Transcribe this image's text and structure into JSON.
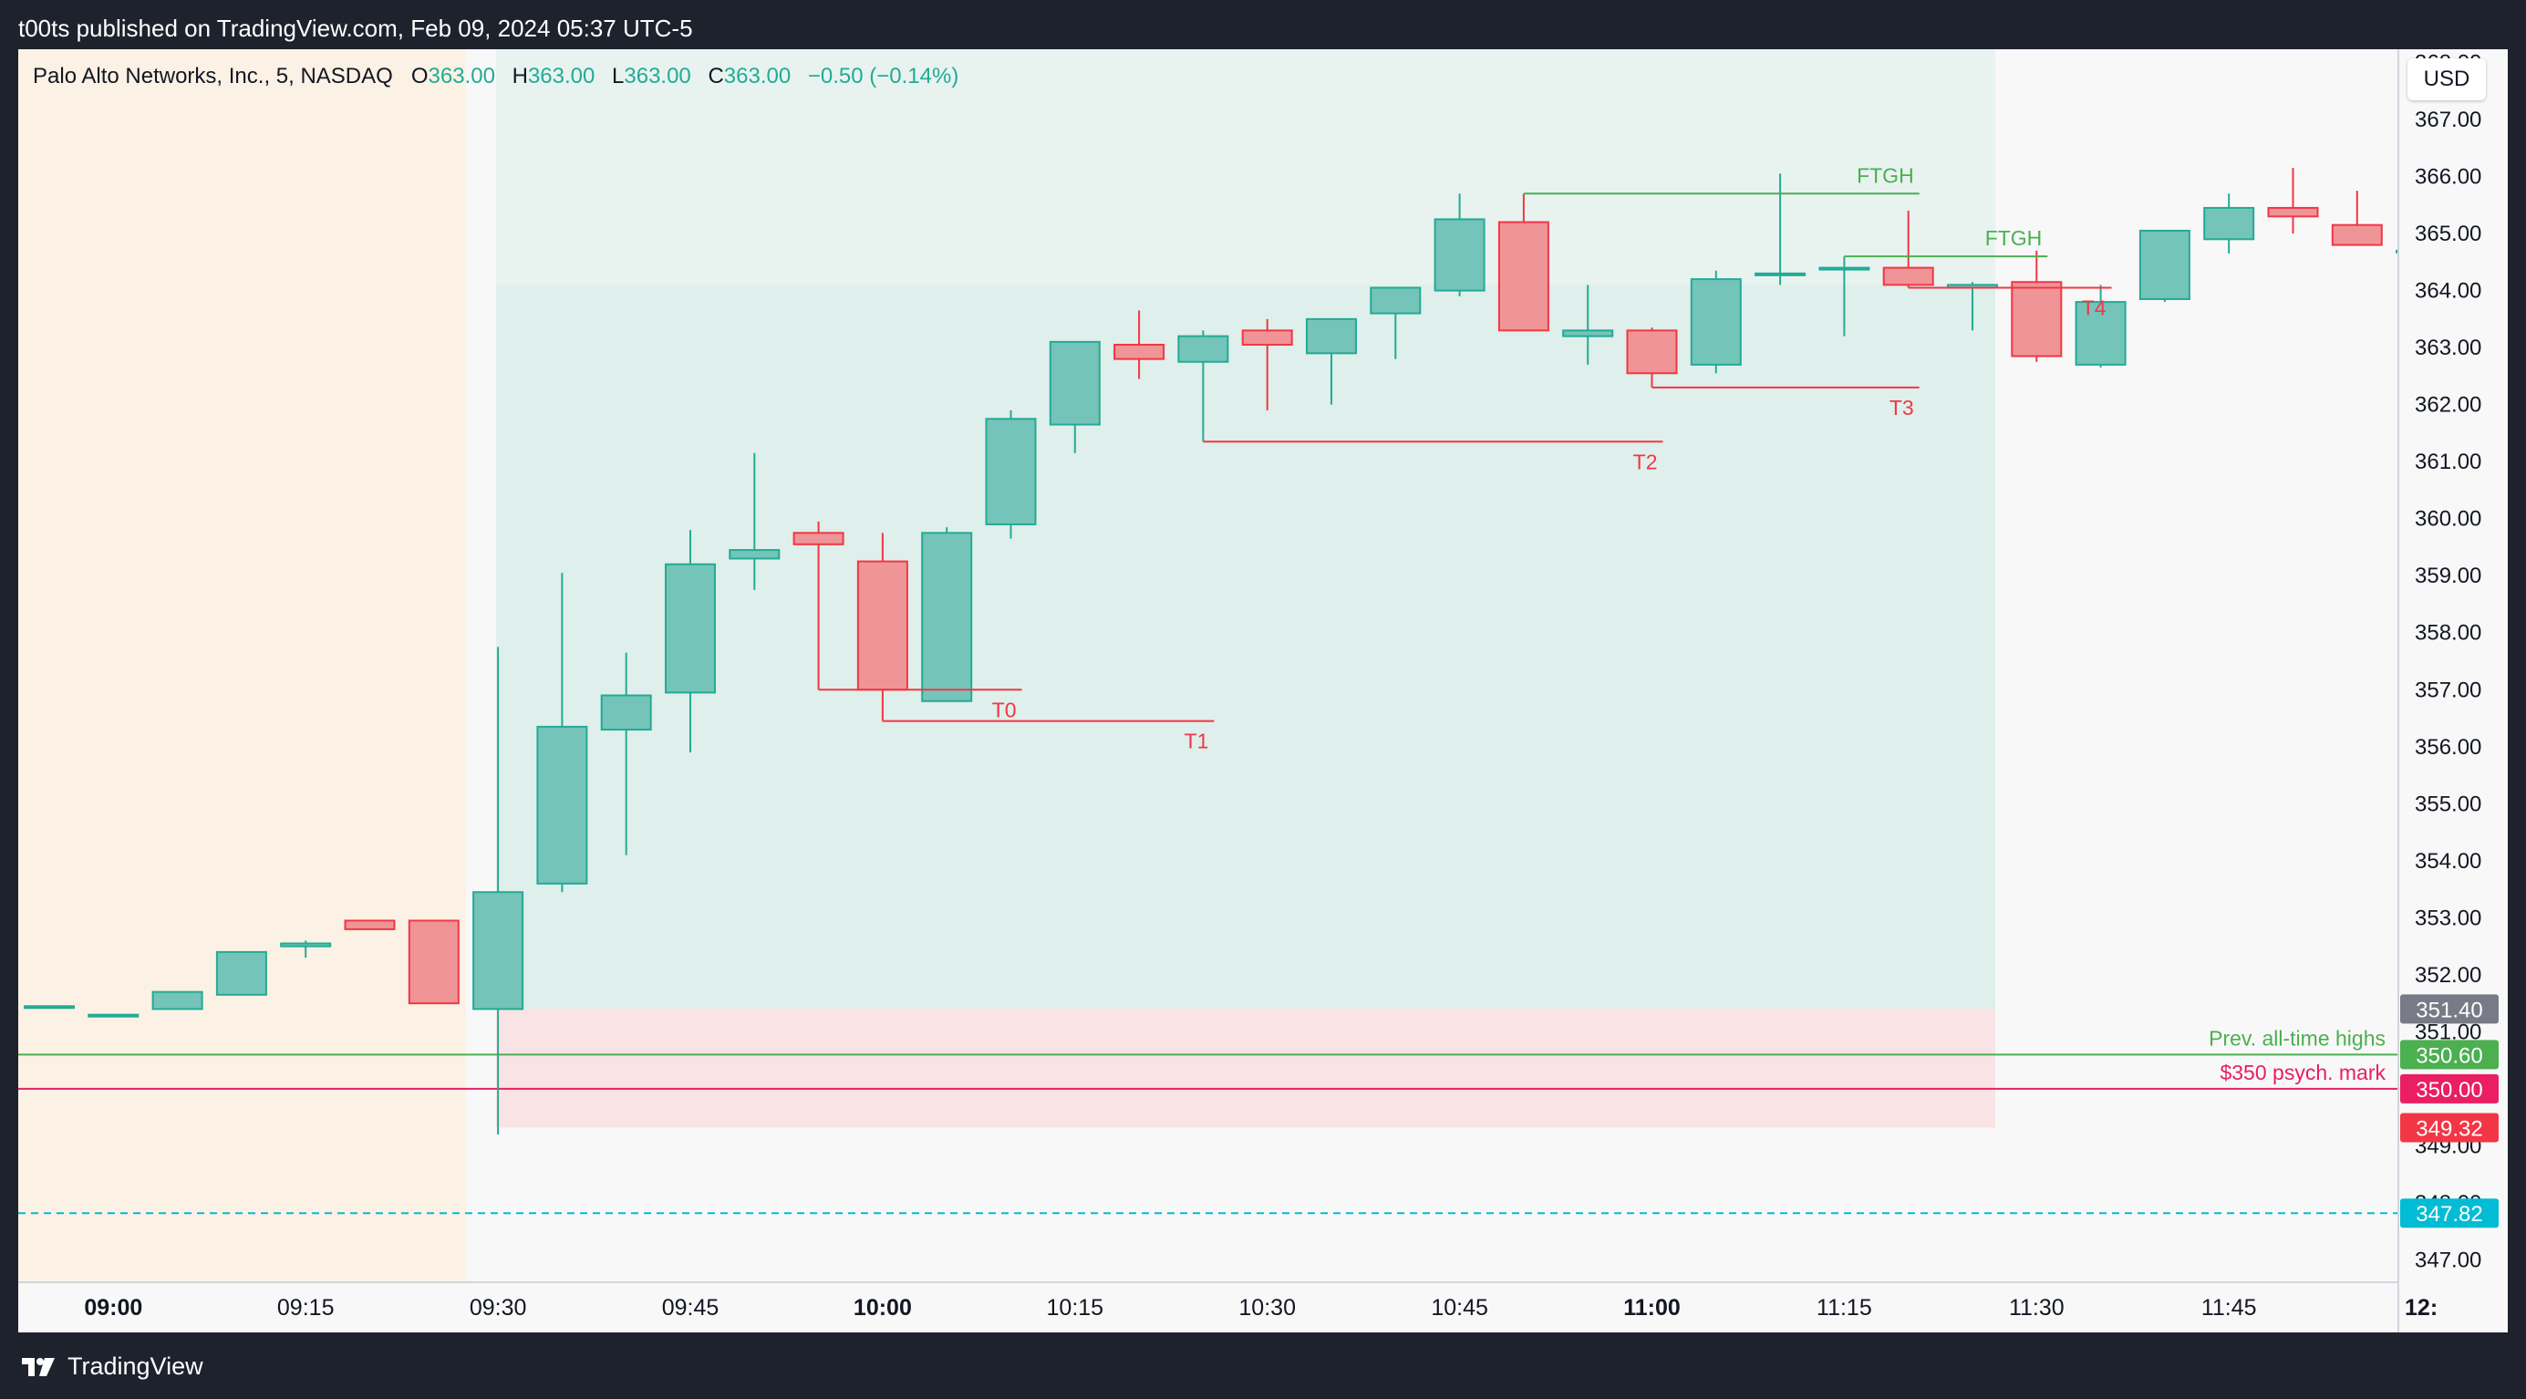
{
  "header": {
    "publish_text": "t00ts published on TradingView.com, Feb 09, 2024 05:37 UTC-5"
  },
  "legend": {
    "symbol": "Palo Alto Networks, Inc., 5, NASDAQ",
    "o_label": "O",
    "o_value": "363.00",
    "h_label": "H",
    "h_value": "363.00",
    "l_label": "L",
    "l_value": "363.00",
    "c_label": "C",
    "c_value": "363.00",
    "change": "−0.50 (−0.14%)"
  },
  "currency": "USD",
  "footer": {
    "brand": "TradingView"
  },
  "colors": {
    "up": "#22ab94",
    "down": "#f23645",
    "green_line": "#4caf50",
    "red_line": "#e91e63",
    "dashed": "#00bcd4"
  },
  "chart_data": {
    "type": "candlestick",
    "timeframe": "5",
    "y_range": [
      346.8,
      368.2
    ],
    "y_ticks": [
      "347.00",
      "348.00",
      "349.00",
      "350.00",
      "351.00",
      "352.00",
      "353.00",
      "354.00",
      "355.00",
      "356.00",
      "357.00",
      "358.00",
      "359.00",
      "360.00",
      "361.00",
      "362.00",
      "363.00",
      "364.00",
      "365.00",
      "366.00",
      "367.00",
      "368.00"
    ],
    "x_ticks": [
      {
        "label": "09:00",
        "i": 1,
        "bold": true
      },
      {
        "label": "09:15",
        "i": 4,
        "bold": false
      },
      {
        "label": "09:30",
        "i": 7,
        "bold": false
      },
      {
        "label": "09:45",
        "i": 10,
        "bold": false
      },
      {
        "label": "10:00",
        "i": 13,
        "bold": true
      },
      {
        "label": "10:15",
        "i": 16,
        "bold": false
      },
      {
        "label": "10:30",
        "i": 19,
        "bold": false
      },
      {
        "label": "10:45",
        "i": 22,
        "bold": false
      },
      {
        "label": "11:00",
        "i": 25,
        "bold": true
      },
      {
        "label": "11:15",
        "i": 28,
        "bold": false
      },
      {
        "label": "11:30",
        "i": 31,
        "bold": false
      },
      {
        "label": "11:45",
        "i": 34,
        "bold": false
      },
      {
        "label": "12:",
        "i": 37,
        "bold": true
      }
    ],
    "candles": [
      {
        "t": "08:55",
        "o": 351.45,
        "h": 351.45,
        "l": 351.45,
        "c": 351.45
      },
      {
        "t": "09:00",
        "o": 351.3,
        "h": 351.3,
        "l": 351.3,
        "c": 351.3
      },
      {
        "t": "09:05",
        "o": 351.4,
        "h": 351.7,
        "l": 351.4,
        "c": 351.7
      },
      {
        "t": "09:10",
        "o": 351.65,
        "h": 352.4,
        "l": 351.65,
        "c": 352.4
      },
      {
        "t": "09:15",
        "o": 352.5,
        "h": 352.6,
        "l": 352.3,
        "c": 352.55
      },
      {
        "t": "09:20",
        "o": 352.95,
        "h": 352.95,
        "l": 352.8,
        "c": 352.8
      },
      {
        "t": "09:25",
        "o": 352.95,
        "h": 352.95,
        "l": 351.5,
        "c": 351.5
      },
      {
        "t": "09:30",
        "o": 351.4,
        "h": 357.75,
        "l": 349.2,
        "c": 353.45
      },
      {
        "t": "09:35",
        "o": 353.6,
        "h": 359.05,
        "l": 353.45,
        "c": 356.35
      },
      {
        "t": "09:40",
        "o": 356.3,
        "h": 357.65,
        "l": 354.1,
        "c": 356.9
      },
      {
        "t": "09:45",
        "o": 356.95,
        "h": 359.8,
        "l": 355.9,
        "c": 359.2
      },
      {
        "t": "09:50",
        "o": 359.3,
        "h": 361.15,
        "l": 358.75,
        "c": 359.45
      },
      {
        "t": "09:55",
        "o": 359.75,
        "h": 359.95,
        "l": 357.0,
        "c": 359.55
      },
      {
        "t": "10:00",
        "o": 359.25,
        "h": 359.75,
        "l": 356.45,
        "c": 357.0
      },
      {
        "t": "10:05",
        "o": 356.8,
        "h": 359.85,
        "l": 356.8,
        "c": 359.75
      },
      {
        "t": "10:10",
        "o": 359.9,
        "h": 361.9,
        "l": 359.65,
        "c": 361.75
      },
      {
        "t": "10:15",
        "o": 361.65,
        "h": 363.1,
        "l": 361.15,
        "c": 363.1
      },
      {
        "t": "10:20",
        "o": 363.05,
        "h": 363.65,
        "l": 362.45,
        "c": 362.8
      },
      {
        "t": "10:25",
        "o": 362.75,
        "h": 363.3,
        "l": 361.35,
        "c": 363.2
      },
      {
        "t": "10:30",
        "o": 363.3,
        "h": 363.5,
        "l": 361.9,
        "c": 363.05
      },
      {
        "t": "10:35",
        "o": 362.9,
        "h": 363.5,
        "l": 362.0,
        "c": 363.5
      },
      {
        "t": "10:40",
        "o": 363.6,
        "h": 364.05,
        "l": 362.8,
        "c": 364.05
      },
      {
        "t": "10:45",
        "o": 364.0,
        "h": 365.7,
        "l": 363.9,
        "c": 365.25
      },
      {
        "t": "10:50",
        "o": 365.2,
        "h": 365.7,
        "l": 363.3,
        "c": 363.3
      },
      {
        "t": "10:55",
        "o": 363.2,
        "h": 364.1,
        "l": 362.7,
        "c": 363.3
      },
      {
        "t": "11:00",
        "o": 363.3,
        "h": 363.35,
        "l": 362.3,
        "c": 362.55
      },
      {
        "t": "11:05",
        "o": 362.7,
        "h": 364.35,
        "l": 362.55,
        "c": 364.2
      },
      {
        "t": "11:10",
        "o": 364.3,
        "h": 366.05,
        "l": 364.1,
        "c": 364.3
      },
      {
        "t": "11:15",
        "o": 364.4,
        "h": 364.6,
        "l": 363.2,
        "c": 364.4
      },
      {
        "t": "11:20",
        "o": 364.4,
        "h": 365.4,
        "l": 364.05,
        "c": 364.1
      },
      {
        "t": "11:25",
        "o": 364.05,
        "h": 364.15,
        "l": 363.3,
        "c": 364.1
      },
      {
        "t": "11:30",
        "o": 364.15,
        "h": 364.7,
        "l": 362.75,
        "c": 362.85
      },
      {
        "t": "11:35",
        "o": 362.7,
        "h": 364.1,
        "l": 362.65,
        "c": 363.8
      },
      {
        "t": "11:40",
        "o": 363.85,
        "h": 365.05,
        "l": 363.8,
        "c": 365.05
      },
      {
        "t": "11:45",
        "o": 364.9,
        "h": 365.7,
        "l": 364.65,
        "c": 365.45
      },
      {
        "t": "11:50",
        "o": 365.45,
        "h": 366.15,
        "l": 365.0,
        "c": 365.3
      },
      {
        "t": "11:55",
        "o": 365.15,
        "h": 365.75,
        "l": 364.8,
        "c": 364.8
      },
      {
        "t": "12:00",
        "o": 364.7,
        "h": 365.0,
        "l": 364.2,
        "c": 364.7
      }
    ],
    "annotations": [
      {
        "type": "hline",
        "price": 350.6,
        "label": "Prev. all-time highs",
        "color": "#4caf50",
        "style": "solid"
      },
      {
        "type": "hline",
        "price": 350.0,
        "label": "$350 psych. mark",
        "color": "#e91e63",
        "style": "solid"
      },
      {
        "type": "hline",
        "price": 347.82,
        "label": "",
        "color": "#00bcd4",
        "style": "dashed"
      },
      {
        "type": "hline_seg",
        "price": 357.0,
        "from_i": 12,
        "to_i": 15,
        "label": "T0",
        "color": "#f23645"
      },
      {
        "type": "hline_seg",
        "price": 356.45,
        "from_i": 13,
        "to_i": 18,
        "label": "T1",
        "color": "#f23645"
      },
      {
        "type": "hline_seg",
        "price": 361.35,
        "from_i": 18,
        "to_i": 25,
        "label": "T2",
        "color": "#f23645"
      },
      {
        "type": "hline_seg",
        "price": 362.3,
        "from_i": 25,
        "to_i": 29,
        "label": "T3",
        "color": "#f23645"
      },
      {
        "type": "hline_seg",
        "price": 364.05,
        "from_i": 29,
        "to_i": 32,
        "label": "T4",
        "color": "#f23645"
      },
      {
        "type": "hline_seg",
        "price": 365.7,
        "from_i": 23,
        "to_i": 29,
        "label": "FTGH",
        "color": "#4caf50"
      },
      {
        "type": "hline_seg",
        "price": 364.6,
        "from_i": 28,
        "to_i": 31,
        "label": "FTGH",
        "color": "#4caf50"
      }
    ],
    "price_tags": [
      {
        "value": "351.40",
        "bg": "#787b86"
      },
      {
        "value": "350.60",
        "bg": "#4caf50"
      },
      {
        "value": "350.00",
        "bg": "#e91e63"
      },
      {
        "value": "349.32",
        "bg": "#f23645"
      },
      {
        "value": "347.82",
        "bg": "#00bcd4"
      }
    ],
    "position": {
      "type": "long",
      "entry": 351.4,
      "target": 364.1,
      "stop": 349.32,
      "from_i": 7,
      "to_i": 30
    },
    "session": {
      "premarket_end_i": 6
    }
  }
}
